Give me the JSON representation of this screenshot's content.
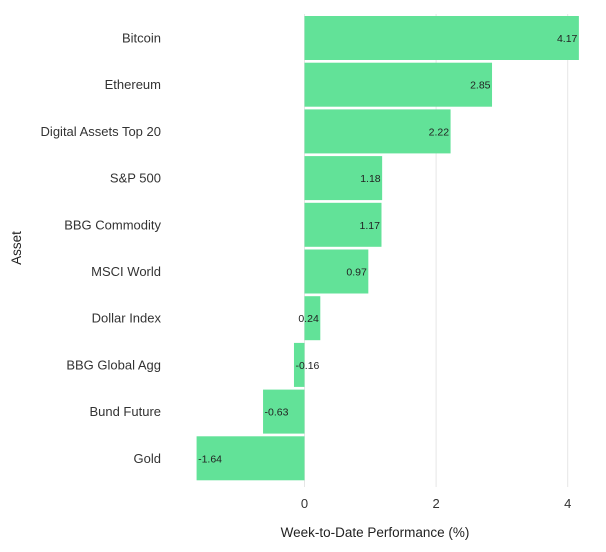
{
  "chart_data": {
    "type": "bar",
    "orientation": "horizontal",
    "categories": [
      "Bitcoin",
      "Ethereum",
      "Digital Assets Top 20",
      "S&P 500",
      "BBG Commodity",
      "MSCI World",
      "Dollar Index",
      "BBG Global Agg",
      "Bund Future",
      "Gold"
    ],
    "values": [
      4.17,
      2.85,
      2.22,
      1.18,
      1.17,
      0.97,
      0.24,
      -0.16,
      -0.63,
      -1.64
    ],
    "value_labels": [
      "4.17",
      "2.85",
      "2.22",
      "1.18",
      "1.17",
      "0.97",
      "0.24",
      "-0.16",
      "-0.63",
      "-1.64"
    ],
    "xlabel": "Week-to-Date Performance (%)",
    "ylabel": "Asset",
    "xticks": [
      0,
      2,
      4
    ],
    "xtick_labels": [
      "0",
      "2",
      "4"
    ],
    "xlim": [
      -1.64,
      4.17
    ],
    "grid": "vertical",
    "bar_color": "#62e298",
    "grid_color": "#e6e6e6"
  }
}
